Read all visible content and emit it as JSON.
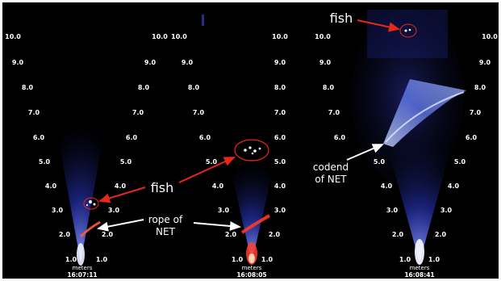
{
  "panels": [
    {
      "id": "panel-1",
      "left_ticks": [
        "10.0",
        "9.0",
        "8.0",
        "7.0",
        "6.0",
        "5.0",
        "4.0",
        "3.0",
        "2.0",
        "1.0"
      ],
      "right_ticks": [
        "10.0",
        "9.0",
        "8.0",
        "7.0",
        "6.0",
        "5.0",
        "4.0",
        "3.0",
        "2.0",
        "1.0"
      ],
      "unit": "meters",
      "timestamp": "16:07:11"
    },
    {
      "id": "panel-2",
      "left_ticks": [
        "10.0",
        "9.0",
        "8.0",
        "7.0",
        "6.0",
        "5.0",
        "4.0",
        "3.0",
        "2.0",
        "1.0"
      ],
      "right_ticks": [
        "10.0",
        "9.0",
        "8.0",
        "7.0",
        "6.0",
        "5.0",
        "4.0",
        "3.0",
        "2.0",
        "1.0"
      ],
      "unit": "meters",
      "timestamp": "16:08:05"
    },
    {
      "id": "panel-3",
      "left_ticks": [
        "10.0",
        "9.0",
        "8.0",
        "7.0",
        "6.0",
        "5.0",
        "4.0",
        "3.0",
        "2.0",
        "1.0"
      ],
      "right_ticks": [
        "10.0",
        "9.0",
        "8.0",
        "7.0",
        "6.0",
        "5.0",
        "4.0",
        "3.0",
        "2.0",
        "1.0"
      ],
      "unit": "meters",
      "timestamp": "16:08:41"
    }
  ],
  "annotations": {
    "fish_center": "fish",
    "rope_line1": "rope of",
    "rope_line2": "NET",
    "fish_top": "fish",
    "codend_line1": "codend",
    "codend_line2": "of NET"
  },
  "colors": {
    "background": "#000000",
    "beam": "#3a4cff",
    "beam_core": "#dfe6ff",
    "rope_echo": "#ff3a2a",
    "arrow_red": "#e8271b",
    "arrow_white": "#ffffff",
    "circle": "#e8271b"
  }
}
